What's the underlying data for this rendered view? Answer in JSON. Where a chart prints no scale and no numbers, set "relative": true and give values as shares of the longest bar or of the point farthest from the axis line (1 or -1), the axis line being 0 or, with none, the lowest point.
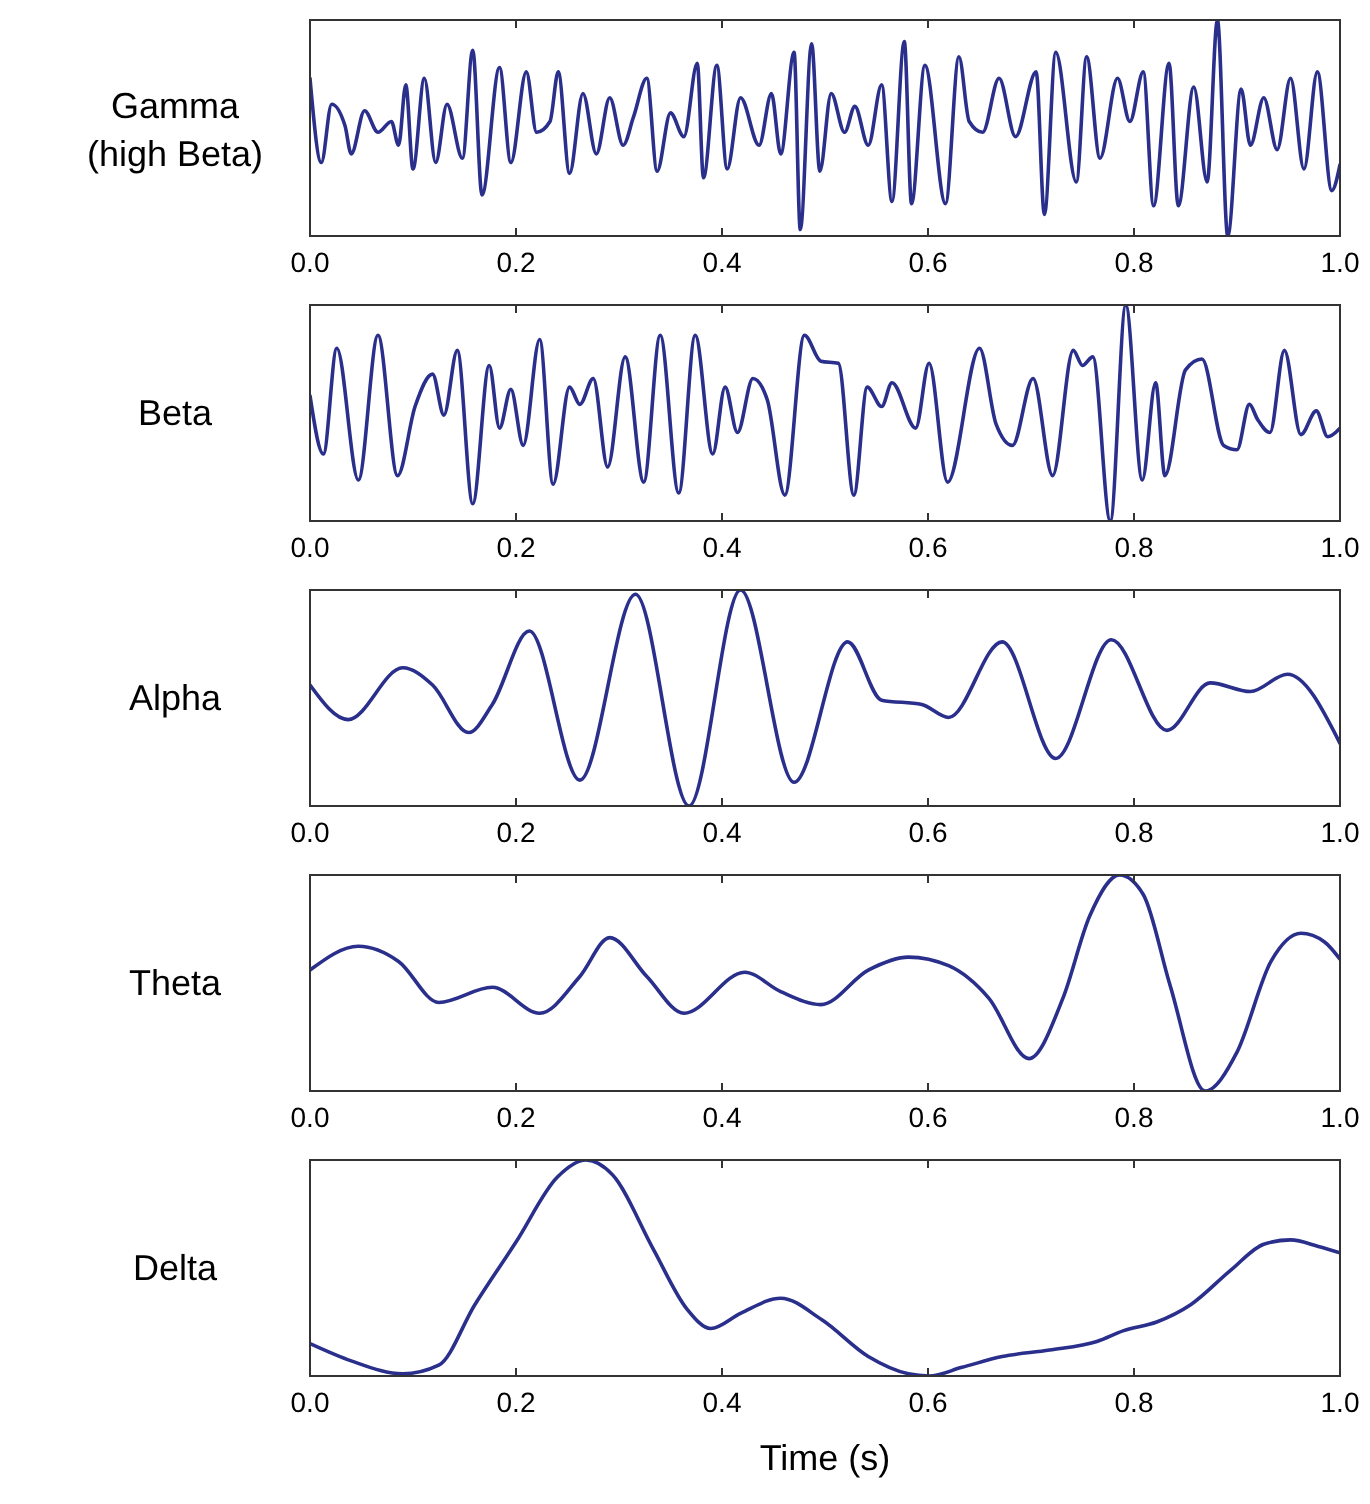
{
  "chart_data": [
    {
      "type": "line",
      "ylabel": "Gamma\n(high Beta)",
      "relative": true,
      "tick_labels": "x",
      "xlim": [
        0,
        1
      ],
      "xticks": [
        {
          "value": 0,
          "label": "0.0"
        },
        {
          "value": 0.2,
          "label": "0.2"
        },
        {
          "value": 0.4,
          "label": "0.4"
        },
        {
          "value": 0.6,
          "label": "0.6"
        },
        {
          "value": 0.8,
          "label": "0.8"
        },
        {
          "value": 1,
          "label": "1.0"
        }
      ],
      "grid": false,
      "series": [
        {
          "color": "#2a2f8c",
          "x": [
            0,
            0.011,
            0.021,
            0.034,
            0.04,
            0.053,
            0.066,
            0.079,
            0.086,
            0.093,
            0.1,
            0.111,
            0.122,
            0.133,
            0.148,
            0.158,
            0.167,
            0.184,
            0.195,
            0.21,
            0.22,
            0.233,
            0.241,
            0.252,
            0.265,
            0.278,
            0.291,
            0.304,
            0.314,
            0.327,
            0.337,
            0.35,
            0.363,
            0.376,
            0.382,
            0.395,
            0.405,
            0.418,
            0.436,
            0.448,
            0.457,
            0.47,
            0.476,
            0.487,
            0.495,
            0.506,
            0.519,
            0.529,
            0.542,
            0.555,
            0.565,
            0.577,
            0.584,
            0.597,
            0.617,
            0.63,
            0.64,
            0.653,
            0.669,
            0.685,
            0.705,
            0.713,
            0.724,
            0.744,
            0.754,
            0.767,
            0.784,
            0.796,
            0.809,
            0.819,
            0.834,
            0.843,
            0.858,
            0.871,
            0.881,
            0.891,
            0.904,
            0.913,
            0.926,
            0.939,
            0.952,
            0.965,
            0.978,
            0.992,
            1
          ],
          "values": [
            0.73,
            0.34,
            0.61,
            0.51,
            0.38,
            0.58,
            0.48,
            0.53,
            0.42,
            0.7,
            0.31,
            0.73,
            0.34,
            0.61,
            0.36,
            0.86,
            0.19,
            0.78,
            0.34,
            0.76,
            0.48,
            0.53,
            0.76,
            0.29,
            0.66,
            0.38,
            0.64,
            0.42,
            0.55,
            0.73,
            0.3,
            0.57,
            0.46,
            0.8,
            0.27,
            0.79,
            0.31,
            0.64,
            0.42,
            0.66,
            0.38,
            0.85,
            0.03,
            0.89,
            0.3,
            0.66,
            0.48,
            0.6,
            0.42,
            0.7,
            0.16,
            0.9,
            0.15,
            0.79,
            0.15,
            0.83,
            0.53,
            0.48,
            0.73,
            0.46,
            0.76,
            0.1,
            0.85,
            0.25,
            0.83,
            0.36,
            0.73,
            0.53,
            0.76,
            0.14,
            0.8,
            0.14,
            0.69,
            0.25,
            1,
            0,
            0.68,
            0.42,
            0.64,
            0.4,
            0.73,
            0.31,
            0.76,
            0.21,
            0.33
          ]
        }
      ]
    },
    {
      "type": "line",
      "ylabel": "Beta",
      "relative": true,
      "tick_labels": "x",
      "xlim": [
        0,
        1
      ],
      "xticks": [
        {
          "value": 0,
          "label": "0.0"
        },
        {
          "value": 0.2,
          "label": "0.2"
        },
        {
          "value": 0.4,
          "label": "0.4"
        },
        {
          "value": 0.6,
          "label": "0.6"
        },
        {
          "value": 0.8,
          "label": "0.8"
        },
        {
          "value": 1,
          "label": "1.0"
        }
      ],
      "grid": false,
      "series": [
        {
          "color": "#2a2f8c",
          "x": [
            0,
            0.013,
            0.026,
            0.047,
            0.066,
            0.085,
            0.102,
            0.119,
            0.13,
            0.143,
            0.158,
            0.174,
            0.184,
            0.195,
            0.207,
            0.223,
            0.236,
            0.252,
            0.262,
            0.275,
            0.289,
            0.306,
            0.324,
            0.34,
            0.358,
            0.374,
            0.391,
            0.403,
            0.415,
            0.43,
            0.444,
            0.461,
            0.48,
            0.496,
            0.513,
            0.528,
            0.541,
            0.555,
            0.565,
            0.588,
            0.601,
            0.619,
            0.65,
            0.666,
            0.682,
            0.702,
            0.721,
            0.741,
            0.75,
            0.76,
            0.777,
            0.792,
            0.808,
            0.821,
            0.83,
            0.85,
            0.866,
            0.887,
            0.9,
            0.912,
            0.92,
            0.932,
            0.946,
            0.962,
            0.977,
            0.988,
            1
          ],
          "values": [
            0.58,
            0.31,
            0.8,
            0.19,
            0.86,
            0.21,
            0.53,
            0.68,
            0.49,
            0.79,
            0.08,
            0.72,
            0.43,
            0.61,
            0.35,
            0.84,
            0.17,
            0.62,
            0.54,
            0.66,
            0.25,
            0.76,
            0.18,
            0.86,
            0.13,
            0.86,
            0.31,
            0.62,
            0.41,
            0.66,
            0.56,
            0.12,
            0.86,
            0.74,
            0.73,
            0.12,
            0.62,
            0.53,
            0.64,
            0.43,
            0.73,
            0.18,
            0.8,
            0.45,
            0.35,
            0.66,
            0.21,
            0.79,
            0.72,
            0.76,
            0,
            1,
            0.19,
            0.64,
            0.21,
            0.7,
            0.75,
            0.35,
            0.33,
            0.54,
            0.47,
            0.41,
            0.79,
            0.4,
            0.51,
            0.39,
            0.43
          ]
        }
      ]
    },
    {
      "type": "line",
      "ylabel": "Alpha",
      "relative": true,
      "tick_labels": "x",
      "xlim": [
        0,
        1
      ],
      "xticks": [
        {
          "value": 0,
          "label": "0.0"
        },
        {
          "value": 0.2,
          "label": "0.2"
        },
        {
          "value": 0.4,
          "label": "0.4"
        },
        {
          "value": 0.6,
          "label": "0.6"
        },
        {
          "value": 0.8,
          "label": "0.8"
        },
        {
          "value": 1,
          "label": "1.0"
        }
      ],
      "grid": false,
      "series": [
        {
          "color": "#2a2f8c",
          "x": [
            0,
            0.037,
            0.09,
            0.119,
            0.154,
            0.177,
            0.213,
            0.262,
            0.316,
            0.368,
            0.418,
            0.47,
            0.522,
            0.555,
            0.594,
            0.62,
            0.672,
            0.724,
            0.778,
            0.832,
            0.874,
            0.913,
            0.949,
            1
          ],
          "values": [
            0.56,
            0.4,
            0.64,
            0.56,
            0.34,
            0.47,
            0.81,
            0.12,
            0.98,
            0,
            1,
            0.11,
            0.76,
            0.49,
            0.47,
            0.41,
            0.76,
            0.22,
            0.77,
            0.35,
            0.57,
            0.53,
            0.61,
            0.29
          ]
        }
      ]
    },
    {
      "type": "line",
      "ylabel": "Theta",
      "relative": true,
      "tick_labels": "x",
      "xlim": [
        0,
        1
      ],
      "xticks": [
        {
          "value": 0,
          "label": "0.0"
        },
        {
          "value": 0.2,
          "label": "0.2"
        },
        {
          "value": 0.4,
          "label": "0.4"
        },
        {
          "value": 0.6,
          "label": "0.6"
        },
        {
          "value": 0.8,
          "label": "0.8"
        },
        {
          "value": 1,
          "label": "1.0"
        }
      ],
      "grid": false,
      "series": [
        {
          "color": "#2a2f8c",
          "x": [
            0,
            0.047,
            0.086,
            0.125,
            0.177,
            0.223,
            0.262,
            0.291,
            0.327,
            0.363,
            0.422,
            0.457,
            0.496,
            0.542,
            0.581,
            0.62,
            0.659,
            0.698,
            0.731,
            0.757,
            0.786,
            0.809,
            0.835,
            0.869,
            0.9,
            0.933,
            0.962,
            0.985,
            1
          ],
          "values": [
            0.56,
            0.67,
            0.6,
            0.41,
            0.48,
            0.36,
            0.53,
            0.71,
            0.53,
            0.36,
            0.55,
            0.46,
            0.4,
            0.56,
            0.62,
            0.58,
            0.43,
            0.15,
            0.43,
            0.81,
            1,
            0.91,
            0.49,
            0,
            0.18,
            0.6,
            0.73,
            0.69,
            0.61
          ]
        }
      ]
    },
    {
      "type": "line",
      "ylabel": "Delta",
      "xlabel": "Time (s)",
      "relative": true,
      "tick_labels": "x",
      "xlim": [
        0,
        1
      ],
      "xticks": [
        {
          "value": 0,
          "label": "0.0"
        },
        {
          "value": 0.2,
          "label": "0.2"
        },
        {
          "value": 0.4,
          "label": "0.4"
        },
        {
          "value": 0.6,
          "label": "0.6"
        },
        {
          "value": 0.8,
          "label": "0.8"
        },
        {
          "value": 1,
          "label": "1.0"
        }
      ],
      "grid": false,
      "series": [
        {
          "color": "#2a2f8c",
          "x": [
            0,
            0.04,
            0.09,
            0.125,
            0.16,
            0.2,
            0.24,
            0.268,
            0.294,
            0.333,
            0.366,
            0.389,
            0.418,
            0.457,
            0.497,
            0.542,
            0.581,
            0.601,
            0.633,
            0.672,
            0.718,
            0.764,
            0.79,
            0.822,
            0.855,
            0.894,
            0.926,
            0.952,
            0.979,
            1
          ],
          "values": [
            0.15,
            0.07,
            0.01,
            0.05,
            0.33,
            0.62,
            0.92,
            1,
            0.93,
            0.59,
            0.31,
            0.22,
            0.29,
            0.36,
            0.26,
            0.09,
            0.01,
            0,
            0.04,
            0.09,
            0.12,
            0.16,
            0.21,
            0.25,
            0.33,
            0.49,
            0.61,
            0.63,
            0.6,
            0.57
          ]
        }
      ]
    }
  ]
}
